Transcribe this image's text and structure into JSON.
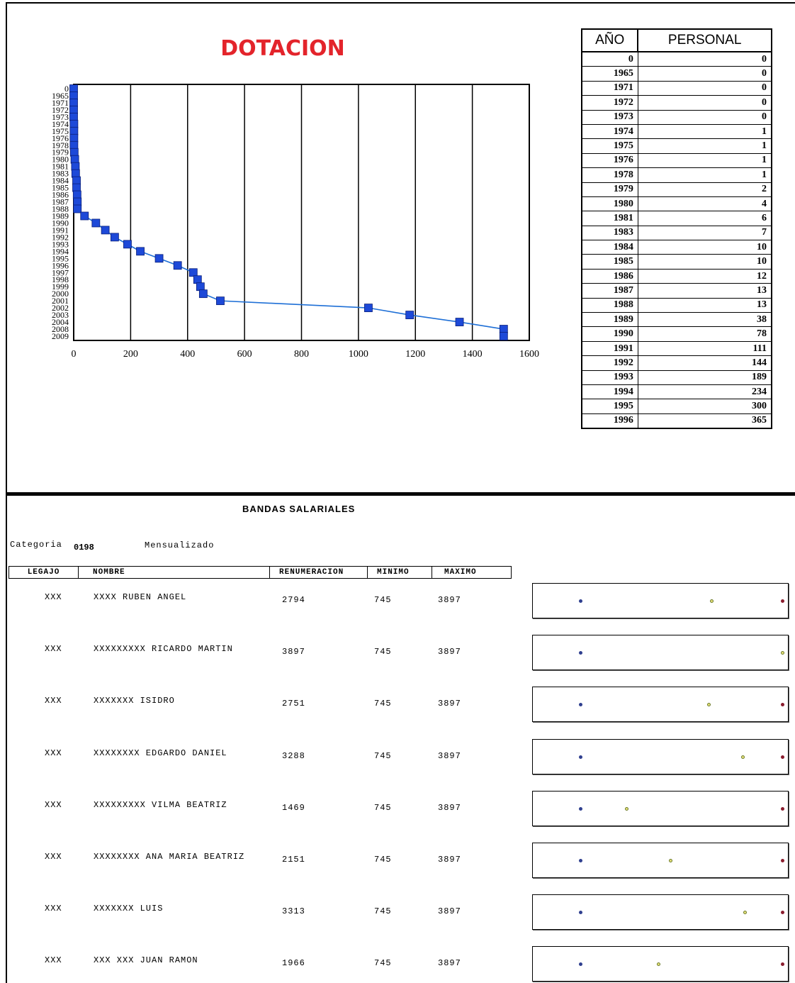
{
  "chart_data": {
    "type": "line",
    "title": "DOTACION",
    "x": [
      0,
      0,
      0,
      0,
      0,
      1,
      1,
      1,
      1,
      2,
      4,
      6,
      7,
      10,
      10,
      12,
      13,
      13,
      38,
      78,
      111,
      144,
      189,
      234,
      300,
      365,
      420,
      435,
      445,
      455,
      515,
      1035,
      1180,
      1355,
      1510,
      1510
    ],
    "y_categories": [
      "0",
      "1965",
      "1971",
      "1972",
      "1973",
      "1974",
      "1975",
      "1976",
      "1978",
      "1979",
      "1980",
      "1981",
      "1983",
      "1984",
      "1985",
      "1986",
      "1987",
      "1988",
      "1989",
      "1990",
      "1991",
      "1992",
      "1993",
      "1994",
      "1995",
      "1996",
      "1997",
      "1998",
      "1999",
      "2000",
      "2001",
      "2002",
      "2003",
      "2004",
      "2008",
      "2009"
    ],
    "xlim": [
      0,
      1600
    ],
    "x_ticks": [
      "0",
      "200",
      "400",
      "600",
      "800",
      "1000",
      "1200",
      "1400",
      "1600"
    ],
    "grid": "vertical",
    "colors": {
      "line": "#1e6fd6",
      "marker": "#1d49d8",
      "title": "#e3242b"
    }
  },
  "year_table": {
    "headers": [
      "AÑO",
      "PERSONAL"
    ],
    "rows": [
      [
        "0",
        "0"
      ],
      [
        "1965",
        "0"
      ],
      [
        "1971",
        "0"
      ],
      [
        "1972",
        "0"
      ],
      [
        "1973",
        "0"
      ],
      [
        "1974",
        "1"
      ],
      [
        "1975",
        "1"
      ],
      [
        "1976",
        "1"
      ],
      [
        "1978",
        "1"
      ],
      [
        "1979",
        "2"
      ],
      [
        "1980",
        "4"
      ],
      [
        "1981",
        "6"
      ],
      [
        "1983",
        "7"
      ],
      [
        "1984",
        "10"
      ],
      [
        "1985",
        "10"
      ],
      [
        "1986",
        "12"
      ],
      [
        "1987",
        "13"
      ],
      [
        "1988",
        "13"
      ],
      [
        "1989",
        "38"
      ],
      [
        "1990",
        "78"
      ],
      [
        "1991",
        "111"
      ],
      [
        "1992",
        "144"
      ],
      [
        "1993",
        "189"
      ],
      [
        "1994",
        "234"
      ],
      [
        "1995",
        "300"
      ],
      [
        "1996",
        "365"
      ]
    ]
  },
  "bands": {
    "title": "BANDAS SALARIALES",
    "category_label": "Categoria",
    "category_value": "0198",
    "mode": "Mensualizado",
    "headers": [
      "LEGAJO",
      "NOMBRE",
      "RENUMERACION",
      "MINIMO",
      "MAXIMO"
    ],
    "rows": [
      {
        "legajo": "XXX",
        "nombre": "XXXX RUBEN ANGEL",
        "rem": "2794",
        "min": "745",
        "max": "3897"
      },
      {
        "legajo": "XXX",
        "nombre": "XXXXXXXXX RICARDO MARTIN",
        "rem": "3897",
        "min": "745",
        "max": "3897"
      },
      {
        "legajo": "XXX",
        "nombre": "XXXXXXX ISIDRO",
        "rem": "2751",
        "min": "745",
        "max": "3897"
      },
      {
        "legajo": "XXX",
        "nombre": "XXXXXXXX EDGARDO DANIEL",
        "rem": "3288",
        "min": "745",
        "max": "3897"
      },
      {
        "legajo": "XXX",
        "nombre": "XXXXXXXXX VILMA BEATRIZ",
        "rem": "1469",
        "min": "745",
        "max": "3897"
      },
      {
        "legajo": "XXX",
        "nombre": "XXXXXXXX ANA MARIA BEATRIZ",
        "rem": "2151",
        "min": "745",
        "max": "3897"
      },
      {
        "legajo": "XXX",
        "nombre": "XXXXXXX LUIS",
        "rem": "3313",
        "min": "745",
        "max": "3897"
      },
      {
        "legajo": "XXX",
        "nombre": "XXX XXX JUAN RAMON",
        "rem": "1966",
        "min": "745",
        "max": "3897"
      }
    ],
    "colors": {
      "min_dot": "#2f3f8f",
      "max_dot": "#8a1d2e",
      "value_dot": "#e6e07a"
    }
  }
}
